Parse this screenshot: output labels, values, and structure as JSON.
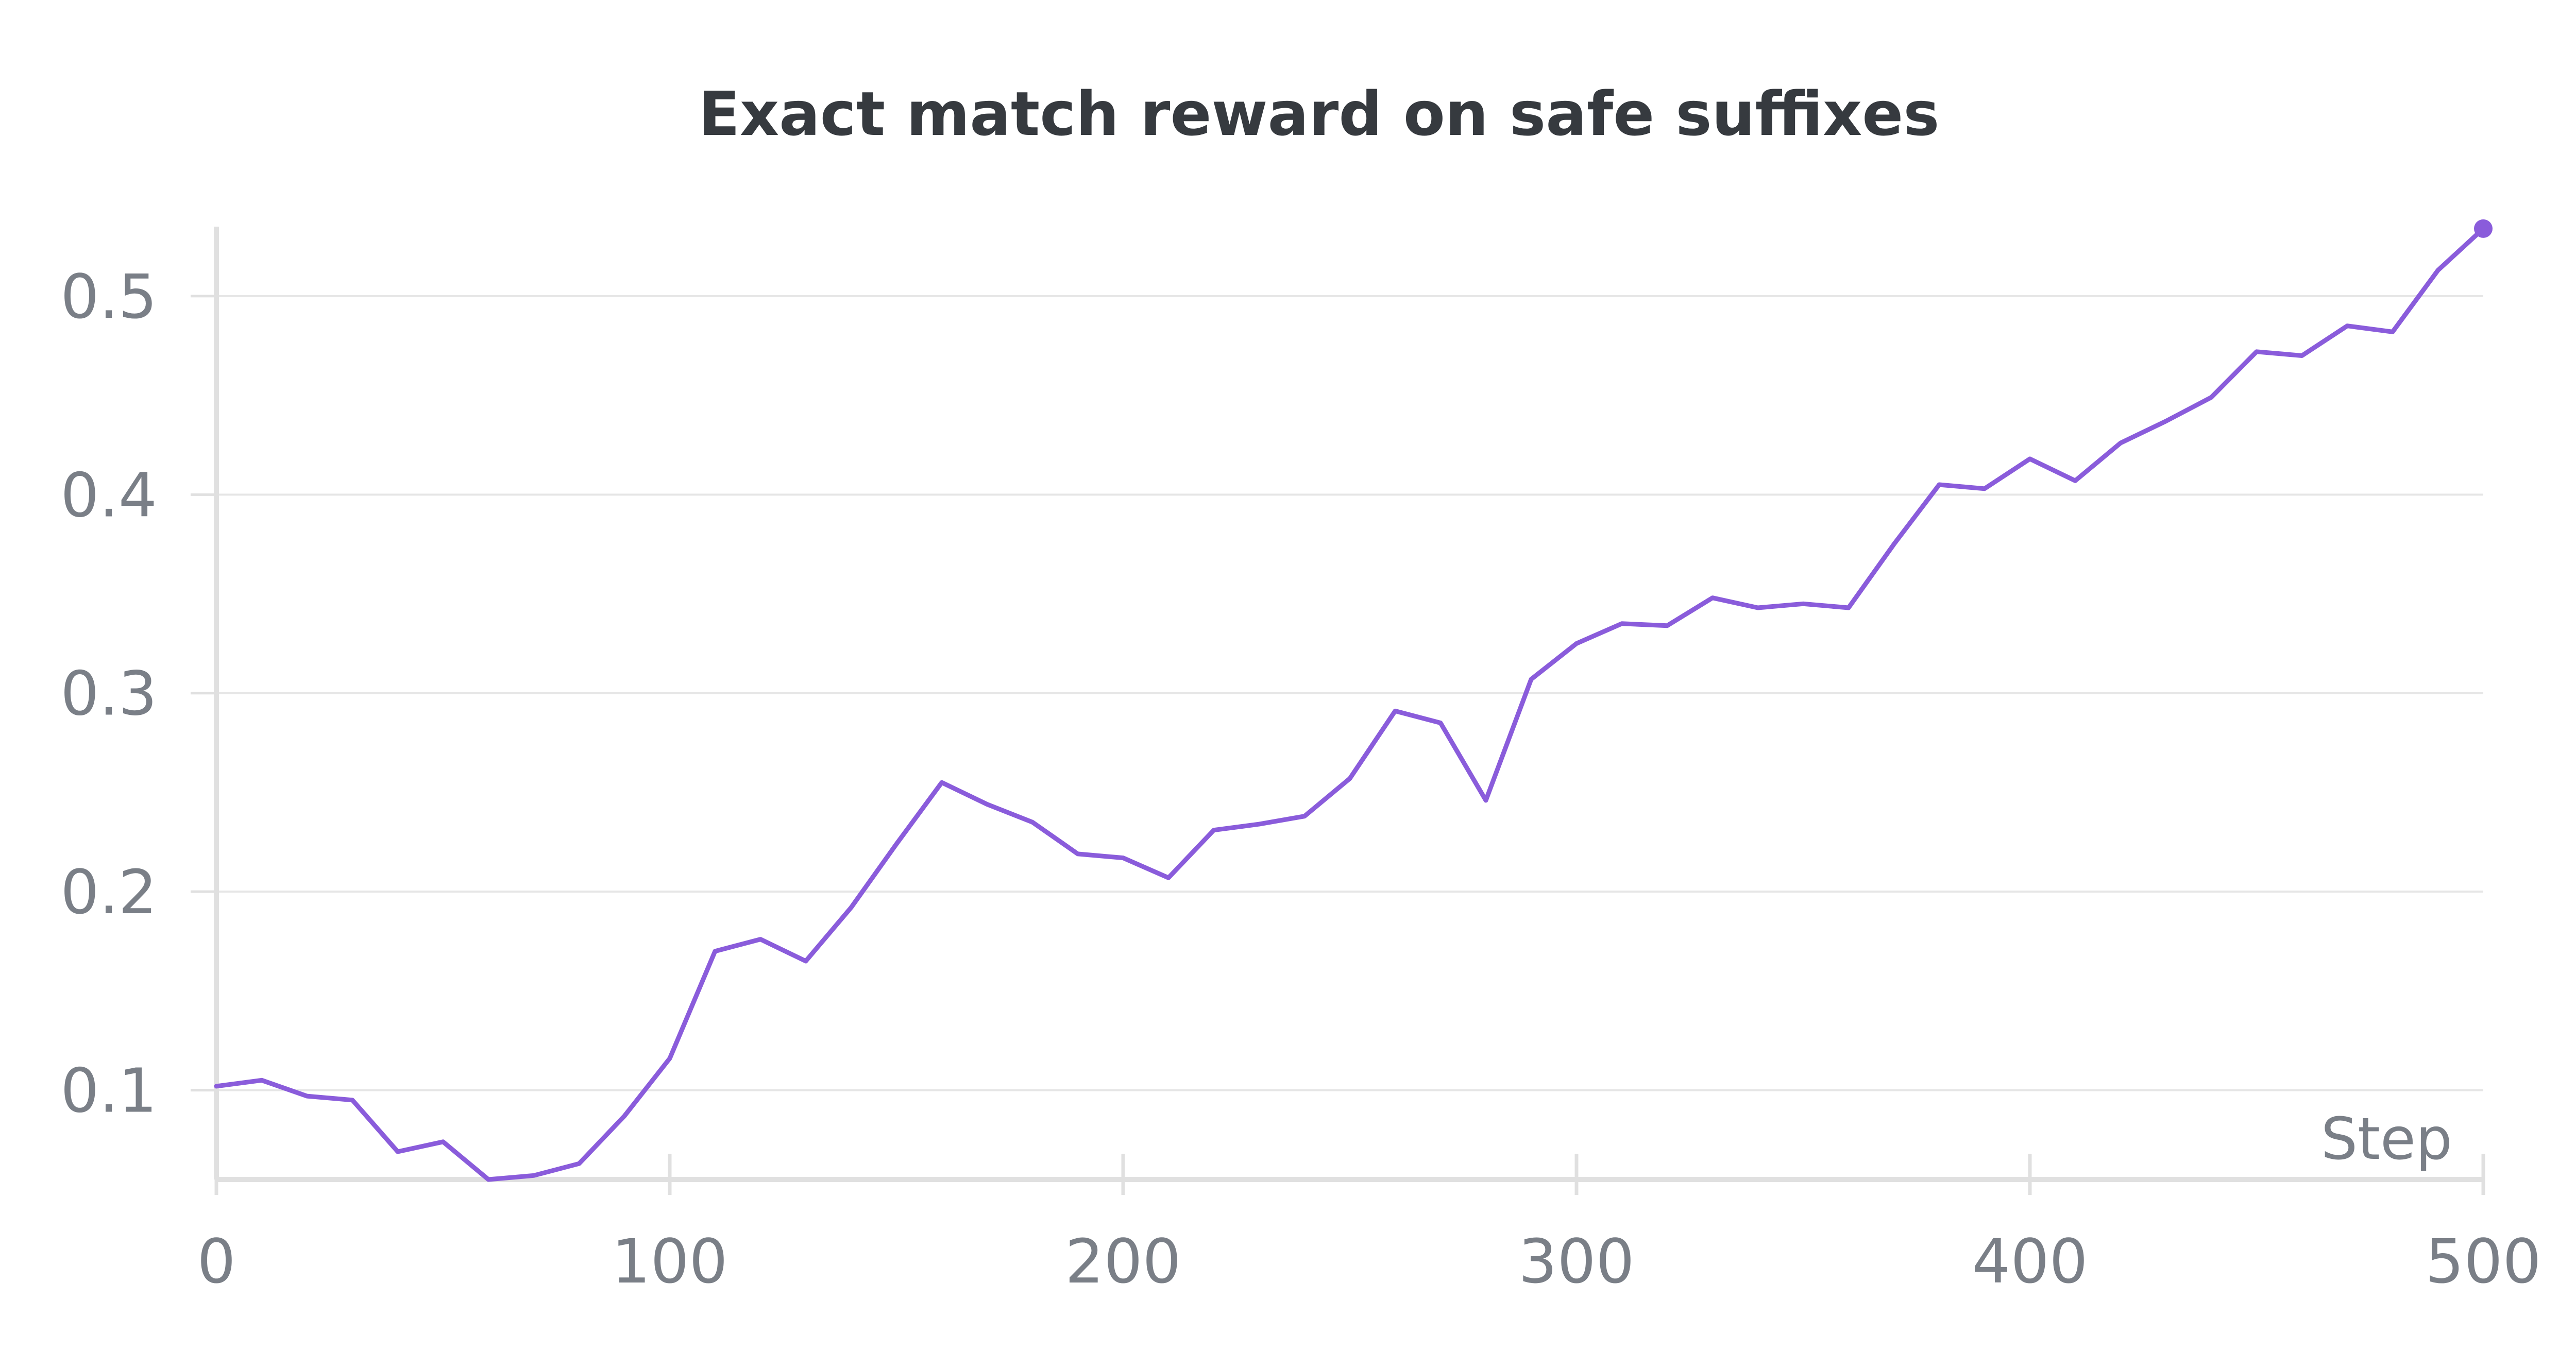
{
  "colors": {
    "line": "#8a5cdb",
    "grid": "#e6e6e6",
    "axis": "#e0e0e0",
    "text": "#7a7f87",
    "title": "#363a3f"
  },
  "chart_data": {
    "type": "line",
    "title": "Exact match reward on safe suffixes",
    "xlabel": "Step",
    "ylabel": "",
    "xlim": [
      0,
      500
    ],
    "ylim": [
      0.055,
      0.535
    ],
    "xticks": [
      0,
      100,
      200,
      300,
      400,
      500
    ],
    "yticks": [
      0.1,
      0.2,
      0.3,
      0.4,
      0.5
    ],
    "ytick_labels": [
      "0.1",
      "0.2",
      "0.3",
      "0.4",
      "0.5"
    ],
    "grid": true,
    "legend": "none",
    "end_marker": true,
    "series": [
      {
        "x": [
          0,
          10,
          20,
          30,
          40,
          50,
          60,
          70,
          80,
          90,
          100,
          110,
          120,
          130,
          140,
          150,
          160,
          170,
          180,
          190,
          200,
          210,
          220,
          230,
          240,
          250,
          260,
          270,
          280,
          290,
          300,
          310,
          320,
          330,
          340,
          350,
          360,
          370,
          380,
          390,
          400,
          410,
          420,
          430,
          440,
          450,
          460,
          470,
          480,
          490,
          500
        ],
        "values": [
          0.102,
          0.105,
          0.097,
          0.095,
          0.069,
          0.074,
          0.055,
          0.057,
          0.063,
          0.087,
          0.116,
          0.17,
          0.176,
          0.165,
          0.192,
          0.224,
          0.255,
          0.244,
          0.235,
          0.219,
          0.217,
          0.207,
          0.231,
          0.234,
          0.238,
          0.257,
          0.291,
          0.285,
          0.246,
          0.307,
          0.325,
          0.335,
          0.334,
          0.348,
          0.343,
          0.345,
          0.343,
          0.375,
          0.405,
          0.403,
          0.418,
          0.407,
          0.426,
          0.437,
          0.449,
          0.472,
          0.47,
          0.485,
          0.482,
          0.513,
          0.534
        ]
      }
    ]
  }
}
